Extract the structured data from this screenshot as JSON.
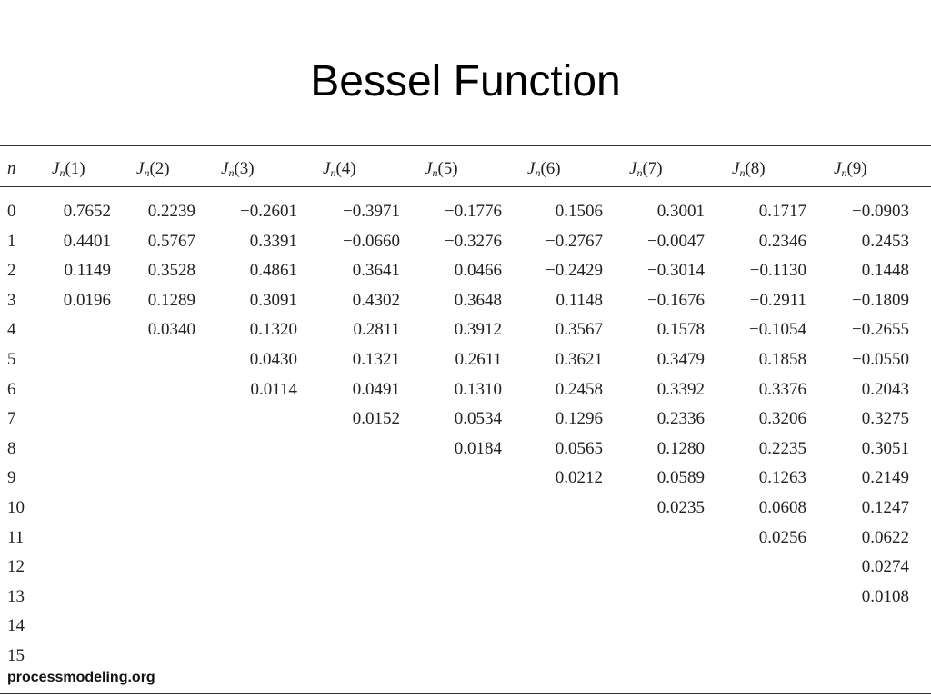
{
  "header": {
    "title": "Bessel Function"
  },
  "table": {
    "columns": [
      "n",
      {
        "base": "J",
        "sub": "n",
        "arg": "(1)"
      },
      {
        "base": "J",
        "sub": "n",
        "arg": "(2)"
      },
      {
        "base": "J",
        "sub": "n",
        "arg": "(3)"
      },
      {
        "base": "J",
        "sub": "n",
        "arg": "(4)"
      },
      {
        "base": "J",
        "sub": "n",
        "arg": "(5)"
      },
      {
        "base": "J",
        "sub": "n",
        "arg": "(6)"
      },
      {
        "base": "J",
        "sub": "n",
        "arg": "(7)"
      },
      {
        "base": "J",
        "sub": "n",
        "arg": "(8)"
      },
      {
        "base": "J",
        "sub": "n",
        "arg": "(9)"
      }
    ],
    "rows": [
      [
        "0",
        "0.7652",
        "0.2239",
        "−0.2601",
        "−0.3971",
        "−0.1776",
        "0.1506",
        "0.3001",
        "0.1717",
        "−0.0903"
      ],
      [
        "1",
        "0.4401",
        "0.5767",
        "0.3391",
        "−0.0660",
        "−0.3276",
        "−0.2767",
        "−0.0047",
        "0.2346",
        "0.2453"
      ],
      [
        "2",
        "0.1149",
        "0.3528",
        "0.4861",
        "0.3641",
        "0.0466",
        "−0.2429",
        "−0.3014",
        "−0.1130",
        "0.1448"
      ],
      [
        "3",
        "0.0196",
        "0.1289",
        "0.3091",
        "0.4302",
        "0.3648",
        "0.1148",
        "−0.1676",
        "−0.2911",
        "−0.1809"
      ],
      [
        "4",
        null,
        "0.0340",
        "0.1320",
        "0.2811",
        "0.3912",
        "0.3567",
        "0.1578",
        "−0.1054",
        "−0.2655"
      ],
      [
        "5",
        null,
        null,
        "0.0430",
        "0.1321",
        "0.2611",
        "0.3621",
        "0.3479",
        "0.1858",
        "−0.0550"
      ],
      [
        "6",
        null,
        null,
        "0.0114",
        "0.0491",
        "0.1310",
        "0.2458",
        "0.3392",
        "0.3376",
        "0.2043"
      ],
      [
        "7",
        null,
        null,
        null,
        "0.0152",
        "0.0534",
        "0.1296",
        "0.2336",
        "0.3206",
        "0.3275"
      ],
      [
        "8",
        null,
        null,
        null,
        null,
        "0.0184",
        "0.0565",
        "0.1280",
        "0.2235",
        "0.3051"
      ],
      [
        "9",
        null,
        null,
        null,
        null,
        null,
        "0.0212",
        "0.0589",
        "0.1263",
        "0.2149"
      ],
      [
        "10",
        null,
        null,
        null,
        null,
        null,
        null,
        "0.0235",
        "0.0608",
        "0.1247"
      ],
      [
        "11",
        null,
        null,
        null,
        null,
        null,
        null,
        null,
        "0.0256",
        "0.0622"
      ],
      [
        "12",
        null,
        null,
        null,
        null,
        null,
        null,
        null,
        null,
        "0.0274"
      ],
      [
        "13",
        null,
        null,
        null,
        null,
        null,
        null,
        null,
        null,
        "0.0108"
      ],
      [
        "14",
        null,
        null,
        null,
        null,
        null,
        null,
        null,
        null,
        null
      ],
      [
        "15",
        null,
        null,
        null,
        null,
        null,
        null,
        null,
        null,
        null
      ]
    ]
  },
  "footer": {
    "source": "processmodeling.org"
  }
}
